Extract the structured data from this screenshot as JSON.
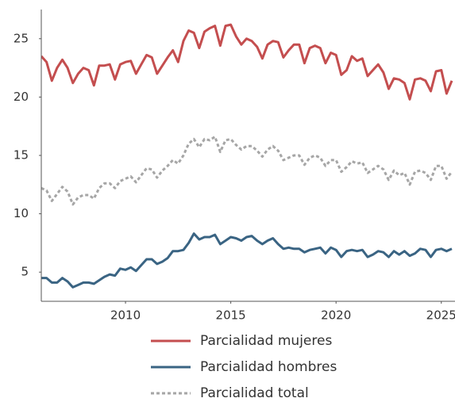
{
  "chart_data": {
    "type": "line",
    "x": [
      2006,
      2006.25,
      2006.5,
      2006.75,
      2007,
      2007.25,
      2007.5,
      2007.75,
      2008,
      2008.25,
      2008.5,
      2008.75,
      2009,
      2009.25,
      2009.5,
      2009.75,
      2010,
      2010.25,
      2010.5,
      2010.75,
      2011,
      2011.25,
      2011.5,
      2011.75,
      2012,
      2012.25,
      2012.5,
      2012.75,
      2013,
      2013.25,
      2013.5,
      2013.75,
      2014,
      2014.25,
      2014.5,
      2014.75,
      2015,
      2015.25,
      2015.5,
      2015.75,
      2016,
      2016.25,
      2016.5,
      2016.75,
      2017,
      2017.25,
      2017.5,
      2017.75,
      2018,
      2018.25,
      2018.5,
      2018.75,
      2019,
      2019.25,
      2019.5,
      2019.75,
      2020,
      2020.25,
      2020.5,
      2020.75,
      2021,
      2021.25,
      2021.5,
      2021.75,
      2022,
      2022.25,
      2022.5,
      2022.75,
      2023,
      2023.25,
      2023.5,
      2023.75,
      2024,
      2024.25,
      2024.5,
      2024.75,
      2025,
      2025.25,
      2025.5
    ],
    "series": [
      {
        "name": "Parcialidad mujeres",
        "color": "#c44e4f",
        "linestyle": "solid",
        "values": [
          23.5,
          23,
          21.4,
          22.5,
          23.2,
          22.5,
          21.2,
          22.0,
          22.5,
          22.3,
          21.0,
          22.7,
          22.7,
          22.8,
          21.5,
          22.8,
          23.0,
          23.1,
          22.0,
          22.8,
          23.6,
          23.4,
          22.0,
          22.7,
          23.4,
          24.0,
          23.0,
          24.8,
          25.7,
          25.5,
          24.2,
          25.6,
          25.9,
          26.1,
          24.4,
          26.1,
          26.2,
          25.2,
          24.5,
          25.0,
          24.8,
          24.3,
          23.3,
          24.5,
          24.8,
          24.7,
          23.4,
          24.0,
          24.5,
          24.5,
          22.9,
          24.2,
          24.4,
          24.2,
          22.9,
          23.8,
          23.6,
          21.9,
          22.3,
          23.5,
          23.1,
          23.3,
          21.8,
          22.3,
          22.8,
          22.1,
          20.7,
          21.6,
          21.5,
          21.2,
          19.8,
          21.5,
          21.6,
          21.4,
          20.5,
          22.2,
          22.3,
          20.3,
          21.4
        ]
      },
      {
        "name": "Parcialidad hombres",
        "color": "#3a6483",
        "linestyle": "solid",
        "values": [
          4.5,
          4.5,
          4.1,
          4.1,
          4.5,
          4.2,
          3.7,
          3.9,
          4.1,
          4.1,
          4.0,
          4.3,
          4.6,
          4.8,
          4.7,
          5.3,
          5.2,
          5.4,
          5.1,
          5.6,
          6.1,
          6.1,
          5.7,
          5.9,
          6.2,
          6.8,
          6.8,
          6.9,
          7.5,
          8.3,
          7.8,
          8.0,
          8.0,
          8.2,
          7.4,
          7.7,
          8.0,
          7.9,
          7.7,
          8.0,
          8.1,
          7.7,
          7.4,
          7.7,
          7.9,
          7.4,
          7.0,
          7.1,
          7.0,
          7.0,
          6.7,
          6.9,
          7.0,
          7.1,
          6.6,
          7.1,
          6.9,
          6.3,
          6.8,
          6.9,
          6.8,
          6.9,
          6.3,
          6.5,
          6.8,
          6.7,
          6.3,
          6.8,
          6.5,
          6.8,
          6.4,
          6.6,
          7.0,
          6.9,
          6.3,
          6.9,
          7.0,
          6.8,
          7.0
        ]
      },
      {
        "name": "Parcialidad total",
        "color": "#a6a6a6",
        "linestyle": "dashed",
        "values": [
          12.2,
          12.0,
          11.1,
          11.7,
          12.3,
          11.9,
          10.8,
          11.4,
          11.6,
          11.6,
          11.3,
          12.2,
          12.6,
          12.6,
          12.2,
          12.8,
          13.0,
          13.2,
          12.7,
          13.3,
          13.9,
          13.8,
          13.1,
          13.7,
          14.1,
          14.6,
          14.3,
          15.0,
          16.0,
          16.4,
          15.7,
          16.4,
          16.3,
          16.6,
          15.3,
          16.3,
          16.4,
          15.9,
          15.5,
          15.8,
          15.8,
          15.4,
          14.9,
          15.5,
          15.8,
          15.4,
          14.6,
          14.8,
          15.0,
          15.0,
          14.2,
          14.8,
          15.0,
          14.8,
          14.1,
          14.6,
          14.6,
          13.6,
          14.0,
          14.5,
          14.3,
          14.4,
          13.5,
          13.8,
          14.1,
          13.8,
          12.9,
          13.7,
          13.3,
          13.5,
          12.5,
          13.6,
          13.7,
          13.5,
          12.9,
          14.1,
          14.1,
          13.0,
          13.6
        ]
      }
    ],
    "xlim": [
      2006,
      2025.65
    ],
    "xticks": [
      2010,
      2015,
      2020,
      2025
    ],
    "ylim": [
      2.5,
      27.5
    ],
    "yticks": [
      5,
      10,
      15,
      20,
      25
    ],
    "grid": false,
    "legend": "bottom"
  }
}
